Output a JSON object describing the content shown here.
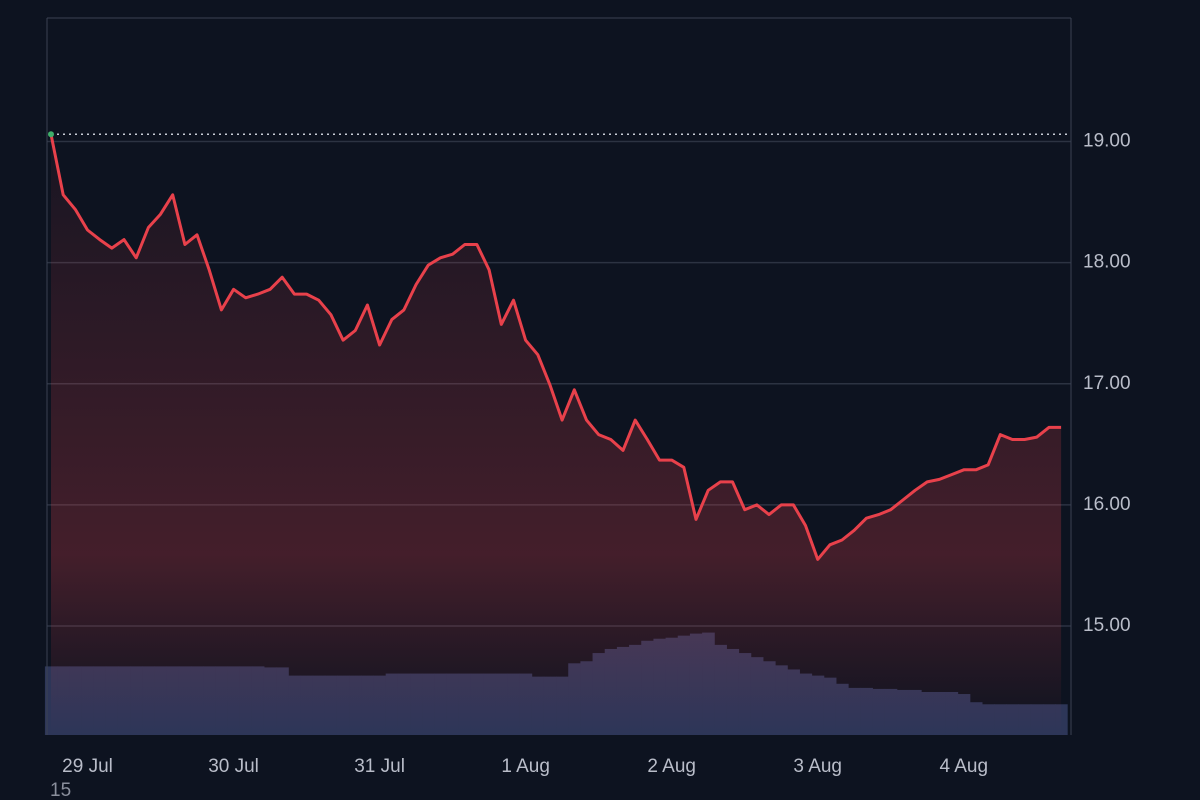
{
  "chart_data": {
    "type": "line",
    "categories": [
      null,
      null,
      null,
      "29 Jul",
      null,
      null,
      null,
      null,
      null,
      null,
      null,
      null,
      null,
      null,
      null,
      "30 Jul",
      null,
      null,
      null,
      null,
      null,
      null,
      null,
      null,
      null,
      null,
      null,
      "31 Jul",
      null,
      null,
      null,
      null,
      null,
      null,
      null,
      null,
      null,
      null,
      null,
      "1 Aug",
      null,
      null,
      null,
      null,
      null,
      null,
      null,
      null,
      null,
      null,
      null,
      "2 Aug",
      null,
      null,
      null,
      null,
      null,
      null,
      null,
      null,
      null,
      null,
      null,
      "3 Aug",
      null,
      null,
      null,
      null,
      null,
      null,
      null,
      null,
      null,
      null,
      null,
      "4 Aug",
      null,
      null,
      null,
      null,
      null,
      null,
      null,
      null
    ],
    "series": [
      {
        "color": "#e8414b",
        "values": [
          19.06,
          18.56,
          18.44,
          18.27,
          18.19,
          18.12,
          18.19,
          18.04,
          18.29,
          18.4,
          18.56,
          18.15,
          18.23,
          17.94,
          17.61,
          17.78,
          17.71,
          17.74,
          17.78,
          17.88,
          17.74,
          17.74,
          17.69,
          17.57,
          17.36,
          17.44,
          17.65,
          17.32,
          17.53,
          17.61,
          17.82,
          17.98,
          18.04,
          18.07,
          18.15,
          18.15,
          17.94,
          17.49,
          17.69,
          17.36,
          17.24,
          16.99,
          16.7,
          16.95,
          16.7,
          16.58,
          16.54,
          16.45,
          16.7,
          16.54,
          16.37,
          16.37,
          16.31,
          15.88,
          16.12,
          16.19,
          16.19,
          15.96,
          16.0,
          15.92,
          16.0,
          16.0,
          15.83,
          15.55,
          15.67,
          15.71,
          15.79,
          15.89,
          15.92,
          15.96,
          16.04,
          16.12,
          16.19,
          16.21,
          16.25,
          16.29,
          16.29,
          16.33,
          16.58,
          16.54,
          16.54,
          16.56,
          16.64,
          16.64
        ]
      },
      {
        "color": "#2d3658",
        "axis": "y2",
        "values": [
          67,
          67,
          67,
          67,
          67,
          67,
          67,
          67,
          67,
          67,
          67,
          67,
          67,
          67,
          67,
          67,
          67,
          67,
          66,
          66,
          58,
          58,
          58,
          58,
          58,
          58,
          58,
          58,
          60,
          60,
          60,
          60,
          60,
          60,
          60,
          60,
          60,
          60,
          60,
          60,
          57,
          57,
          57,
          70,
          72,
          80,
          84,
          86,
          88,
          92,
          94,
          95,
          97,
          99,
          100,
          88,
          84,
          80,
          76,
          72,
          68,
          64,
          60,
          58,
          56,
          50,
          46,
          46,
          45,
          45,
          44,
          44,
          42,
          42,
          42,
          40,
          32,
          30,
          30,
          30,
          30,
          30,
          30,
          30
        ]
      }
    ],
    "ylim": [
      14.1,
      20.02
    ],
    "yticks": [
      {
        "value": 15,
        "label": "15.00"
      },
      {
        "value": 16,
        "label": "16.00"
      },
      {
        "value": 17,
        "label": "17.00"
      },
      {
        "value": 18,
        "label": "18.00"
      },
      {
        "value": 19,
        "label": "19.00"
      }
    ],
    "y2lim": [
      0,
      700
    ],
    "grid": true,
    "annotation": "15"
  }
}
